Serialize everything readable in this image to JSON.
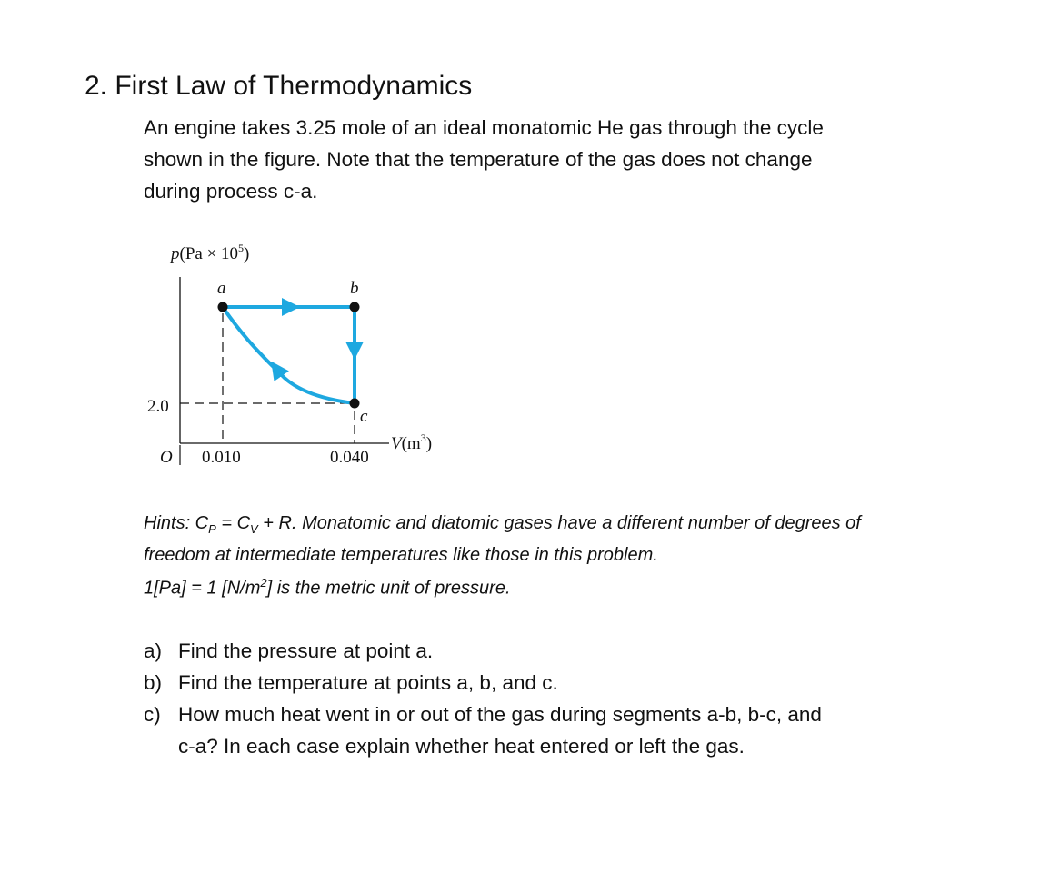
{
  "heading": "2. First Law of Thermodynamics",
  "problem": {
    "lines": [
      "An engine takes 3.25 mole of an ideal monatomic He gas through the cycle",
      "shown in the figure.  Note that the temperature of the gas does not change",
      "during process c-a."
    ]
  },
  "figure": {
    "y_axis_label": {
      "symbol": "p",
      "text": "(Pa × 10",
      "exponent": "5",
      "close": ")"
    },
    "x_axis_label": {
      "symbol": "V",
      "text": "(m",
      "exponent": "3",
      "close": ")"
    },
    "origin": "O",
    "y_tick": "2.0",
    "x_ticks": [
      "0.010",
      "0.040"
    ],
    "points": [
      "a",
      "b",
      "c"
    ]
  },
  "hints": {
    "line1": [
      "Hints: C",
      "P",
      " = C",
      "V",
      " + R. Monatomic and diatomic gases have a different number of degrees of"
    ],
    "line2": "freedom at intermediate temperatures like those in this problem.",
    "line3": [
      "1[Pa] = 1 [N/m",
      "2",
      "] is the metric unit of pressure."
    ]
  },
  "questions": [
    {
      "marker": "a)",
      "lines": [
        "Find the pressure at point a."
      ]
    },
    {
      "marker": "b)",
      "lines": [
        "Find the temperature at points a, b, and c."
      ]
    },
    {
      "marker": "c)",
      "lines": [
        "How much heat went in or out of the gas during segments a-b, b-c, and",
        "c-a? In each case explain whether heat entered or left the gas."
      ]
    }
  ]
}
